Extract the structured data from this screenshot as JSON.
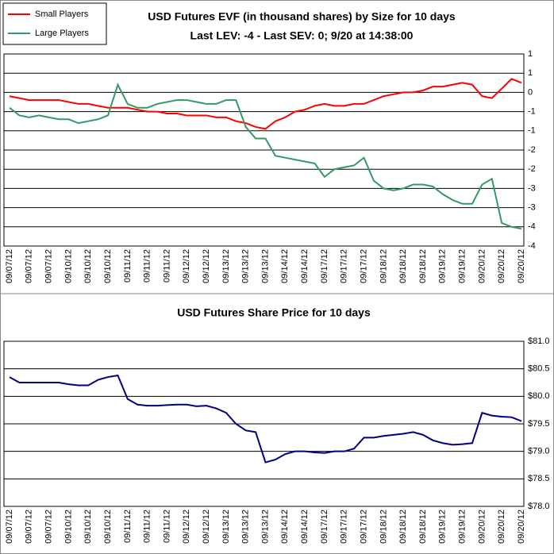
{
  "chart_data": [
    {
      "type": "line",
      "title": "USD Futures EVF (in thousand shares) by Size for 10 days",
      "subtitle": "Last LEV: -4 - Last SEV: 0; 9/20 at 14:38:00",
      "categories": [
        "09/07/12",
        null,
        "09/07/12",
        null,
        "09/07/12",
        null,
        "09/10/12",
        null,
        "09/10/12",
        null,
        "09/10/12",
        null,
        "09/11/12",
        null,
        "09/11/12",
        null,
        "09/11/12",
        null,
        "09/12/12",
        null,
        "09/12/12",
        null,
        "09/13/12",
        null,
        "09/13/12",
        null,
        "09/13/12",
        null,
        "09/14/12",
        null,
        "09/14/12",
        null,
        "09/17/12",
        null,
        "09/17/12",
        null,
        "09/17/12",
        null,
        "09/18/12",
        null,
        "09/18/12",
        null,
        "09/18/12",
        null,
        "09/19/12",
        null,
        "09/19/12",
        null,
        "09/20/12",
        null,
        "09/20/12",
        null,
        "09/20/12"
      ],
      "series": [
        {
          "name": "Small Players",
          "color": "#ff0000",
          "values": [
            -0.1,
            -0.15,
            -0.2,
            -0.2,
            -0.2,
            -0.2,
            -0.25,
            -0.3,
            -0.3,
            -0.35,
            -0.4,
            -0.4,
            -0.4,
            -0.45,
            -0.5,
            -0.5,
            -0.55,
            -0.55,
            -0.6,
            -0.6,
            -0.6,
            -0.65,
            -0.65,
            -0.75,
            -0.8,
            -0.9,
            -0.95,
            -0.75,
            -0.65,
            -0.5,
            -0.45,
            -0.35,
            -0.3,
            -0.35,
            -0.35,
            -0.3,
            -0.3,
            -0.2,
            -0.1,
            -0.05,
            0,
            0,
            0.05,
            0.15,
            0.15,
            0.2,
            0.25,
            0.2,
            -0.1,
            -0.15,
            0.1,
            0.35,
            0.25
          ]
        },
        {
          "name": "Large Players",
          "color": "#339966",
          "values": [
            -0.4,
            -0.6,
            -0.65,
            -0.6,
            -0.65,
            -0.7,
            -0.7,
            -0.8,
            -0.75,
            -0.7,
            -0.6,
            0.2,
            -0.3,
            -0.4,
            -0.4,
            -0.3,
            -0.25,
            -0.2,
            -0.2,
            -0.25,
            -0.3,
            -0.3,
            -0.2,
            -0.2,
            -0.9,
            -1.2,
            -1.2,
            -1.65,
            -1.7,
            -1.75,
            -1.8,
            -1.85,
            -2.2,
            -2.0,
            -1.95,
            -1.9,
            -1.7,
            -2.3,
            -2.5,
            -2.55,
            -2.5,
            -2.4,
            -2.4,
            -2.45,
            -2.65,
            -2.8,
            -2.9,
            -2.9,
            -2.4,
            -2.25,
            -3.4,
            -3.5,
            -3.55
          ]
        }
      ],
      "ylim": [
        -4,
        1
      ],
      "yticks": [
        1,
        {
          "value": 0.5,
          "label": "1"
        },
        0,
        {
          "value": -0.5,
          "label": "-1"
        },
        -1,
        {
          "value": -1.5,
          "label": "-2"
        },
        -2,
        {
          "value": -2.5,
          "label": "-3"
        },
        -3,
        {
          "value": -3.5,
          "label": "-4"
        },
        -4
      ],
      "grid": true,
      "legend": "top-left"
    },
    {
      "type": "line",
      "title": "USD Futures Share Price for 10 days",
      "categories": [
        "09/07/12",
        null,
        "09/07/12",
        null,
        "09/07/12",
        null,
        "09/10/12",
        null,
        "09/10/12",
        null,
        "09/10/12",
        null,
        "09/11/12",
        null,
        "09/11/12",
        null,
        "09/11/12",
        null,
        "09/12/12",
        null,
        "09/12/12",
        null,
        "09/13/12",
        null,
        "09/13/12",
        null,
        "09/13/12",
        null,
        "09/14/12",
        null,
        "09/14/12",
        null,
        "09/17/12",
        null,
        "09/17/12",
        null,
        "09/17/12",
        null,
        "09/18/12",
        null,
        "09/18/12",
        null,
        "09/18/12",
        null,
        "09/19/12",
        null,
        "09/19/12",
        null,
        "09/20/12",
        null,
        "09/20/12",
        null,
        "09/20/12"
      ],
      "series": [
        {
          "color": "#000080",
          "values": [
            80.35,
            80.25,
            80.25,
            80.25,
            80.25,
            80.25,
            80.22,
            80.2,
            80.2,
            80.3,
            80.35,
            80.38,
            79.95,
            79.85,
            79.83,
            79.83,
            79.84,
            79.85,
            79.85,
            79.82,
            79.83,
            79.78,
            79.7,
            79.5,
            79.38,
            79.35,
            78.8,
            78.85,
            78.95,
            79.0,
            79.0,
            78.98,
            78.97,
            79.0,
            79.0,
            79.05,
            79.25,
            79.25,
            79.28,
            79.3,
            79.32,
            79.35,
            79.3,
            79.2,
            79.15,
            79.12,
            79.13,
            79.15,
            79.7,
            79.65,
            79.63,
            79.62,
            79.55
          ]
        }
      ],
      "ylim": [
        78,
        81
      ],
      "yticks": [
        {
          "value": 81,
          "label": "$81.0"
        },
        {
          "value": 80.5,
          "label": "$80.5"
        },
        {
          "value": 80,
          "label": "$80.0"
        },
        {
          "value": 79.5,
          "label": "$79.5"
        },
        {
          "value": 79,
          "label": "$79.0"
        },
        {
          "value": 78.5,
          "label": "$78.5"
        },
        {
          "value": 78,
          "label": "$78.0"
        }
      ],
      "grid": true
    }
  ]
}
